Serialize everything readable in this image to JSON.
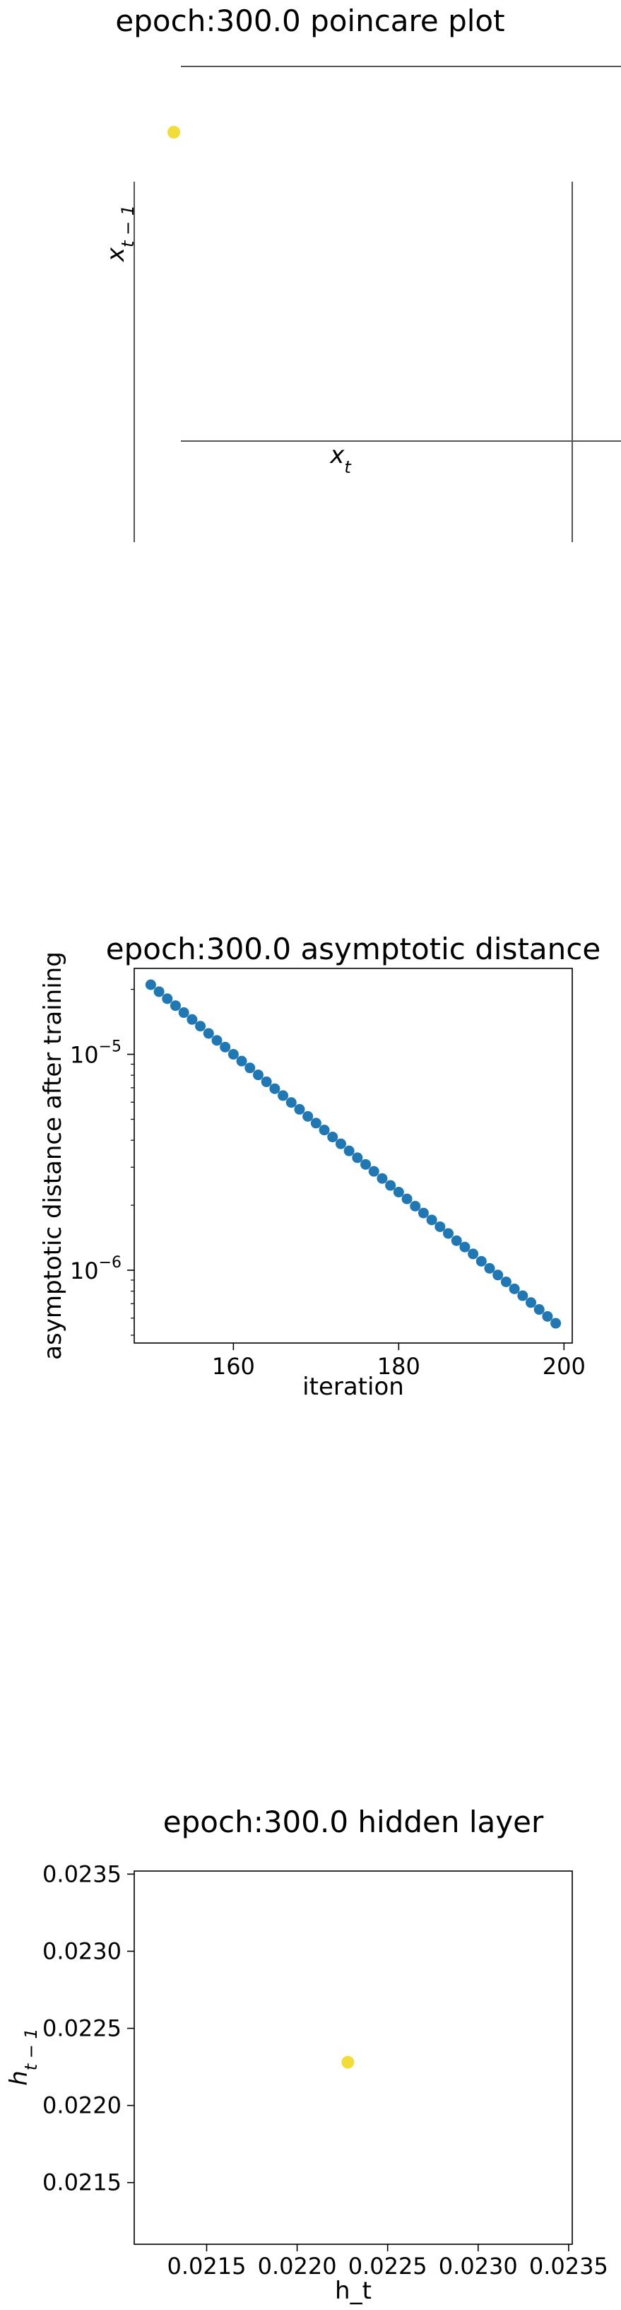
{
  "figure_background": "#ffffff",
  "chart_data": [
    {
      "type": "scatter",
      "title": "epoch:300.0 poincare plot",
      "xlabel_base": "x",
      "xlabel_sub": "t",
      "ylabel_base": "x",
      "ylabel_sub": "t − 1",
      "grid": false,
      "points": [
        {
          "x": 0,
          "y": 0
        }
      ],
      "point_color": "#f2dc3a"
    },
    {
      "type": "scatter",
      "title": "epoch:300.0 asymptotic distance",
      "xlabel": "iteration",
      "ylabel": "asymptotic distance after training",
      "yscale": "log",
      "xlim": [
        148,
        201
      ],
      "ylim": [
        4.6e-07,
        2.5e-05
      ],
      "xticks": [
        160,
        180,
        200
      ],
      "xtick_labels": [
        "160",
        "180",
        "200"
      ],
      "yticks": [
        1e-05,
        1e-06
      ],
      "ytick_bases": [
        "10",
        "10"
      ],
      "ytick_exps": [
        "−5",
        "−6"
      ],
      "series": [
        {
          "x": [
            150,
            151,
            152,
            153,
            154,
            155,
            156,
            157,
            158,
            159,
            160,
            161,
            162,
            163,
            164,
            165,
            166,
            167,
            168,
            169,
            170,
            171,
            172,
            173,
            174,
            175,
            176,
            177,
            178,
            179,
            180,
            181,
            182,
            183,
            184,
            185,
            186,
            187,
            188,
            189,
            190,
            191,
            192,
            193,
            194,
            195,
            196,
            197,
            198,
            199
          ],
          "y": [
            2.1e-05,
            1.95e-05,
            1.81e-05,
            1.68e-05,
            1.56e-05,
            1.45e-05,
            1.35e-05,
            1.25e-05,
            1.16e-05,
            1.08e-05,
            1e-05,
            9.3e-06,
            8.65e-06,
            8.03e-06,
            7.46e-06,
            6.93e-06,
            6.44e-06,
            5.98e-06,
            5.56e-06,
            5.16e-06,
            4.8e-06,
            4.46e-06,
            4.14e-06,
            3.85e-06,
            3.57e-06,
            3.32e-06,
            3.09e-06,
            2.87e-06,
            2.66e-06,
            2.47e-06,
            2.3e-06,
            2.14e-06,
            1.98e-06,
            1.84e-06,
            1.71e-06,
            1.59e-06,
            1.48e-06,
            1.37e-06,
            1.28e-06,
            1.19e-06,
            1.1e-06,
            1.02e-06,
            9.5e-07,
            8.83e-07,
            8.2e-07,
            7.62e-07,
            7.08e-07,
            6.58e-07,
            6.11e-07,
            5.68e-07
          ],
          "color": "#1f77b4"
        }
      ]
    },
    {
      "type": "scatter",
      "title": "epoch:300.0 hidden layer",
      "xlabel": "h_t",
      "ylabel_base": "h",
      "ylabel_sub": "t − 1",
      "xlim": [
        0.0211,
        0.02352
      ],
      "ylim": [
        0.0211,
        0.02352
      ],
      "xticks": [
        0.0215,
        0.022,
        0.0225,
        0.023,
        0.0235
      ],
      "xtick_labels": [
        "0.0215",
        "0.0220",
        "0.0225",
        "0.0230",
        "0.0235"
      ],
      "yticks": [
        0.0215,
        0.022,
        0.0225,
        0.023,
        0.0235
      ],
      "ytick_labels": [
        "0.0215",
        "0.0220",
        "0.0225",
        "0.0230",
        "0.0235"
      ],
      "points": [
        {
          "x": 0.02228,
          "y": 0.02228
        }
      ],
      "point_color": "#f2dc3a"
    }
  ]
}
